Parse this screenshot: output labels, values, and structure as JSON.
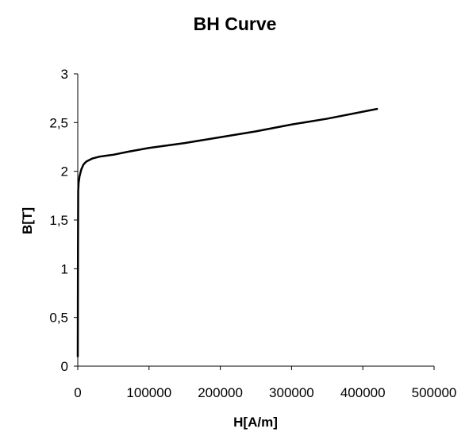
{
  "chart_data": {
    "type": "line",
    "title": "BH Curve",
    "xlabel": "H[A/m]",
    "ylabel": "B[T]",
    "xlim": [
      0,
      500000
    ],
    "ylim": [
      0,
      3
    ],
    "x_ticks": [
      0,
      100000,
      200000,
      300000,
      400000,
      500000
    ],
    "x_tick_labels": [
      "0",
      "100000",
      "200000",
      "300000",
      "400000",
      "500000"
    ],
    "y_ticks": [
      0,
      0.5,
      1,
      1.5,
      2,
      2.5,
      3
    ],
    "y_tick_labels": [
      "0",
      "0,5",
      "1",
      "1,5",
      "2",
      "2,5",
      "3"
    ],
    "grid": false,
    "legend": "none",
    "series": [
      {
        "color": "#000000",
        "points": [
          [
            0,
            0.1
          ],
          [
            300,
            1.2
          ],
          [
            600,
            1.8
          ],
          [
            1200,
            1.88
          ],
          [
            2500,
            1.95
          ],
          [
            5000,
            2.02
          ],
          [
            8000,
            2.07
          ],
          [
            12000,
            2.1
          ],
          [
            20000,
            2.13
          ],
          [
            30000,
            2.15
          ],
          [
            40000,
            2.16
          ],
          [
            50000,
            2.17
          ],
          [
            70000,
            2.2
          ],
          [
            100000,
            2.24
          ],
          [
            150000,
            2.29
          ],
          [
            200000,
            2.35
          ],
          [
            250000,
            2.41
          ],
          [
            300000,
            2.48
          ],
          [
            350000,
            2.54
          ],
          [
            420000,
            2.64
          ]
        ]
      }
    ]
  }
}
